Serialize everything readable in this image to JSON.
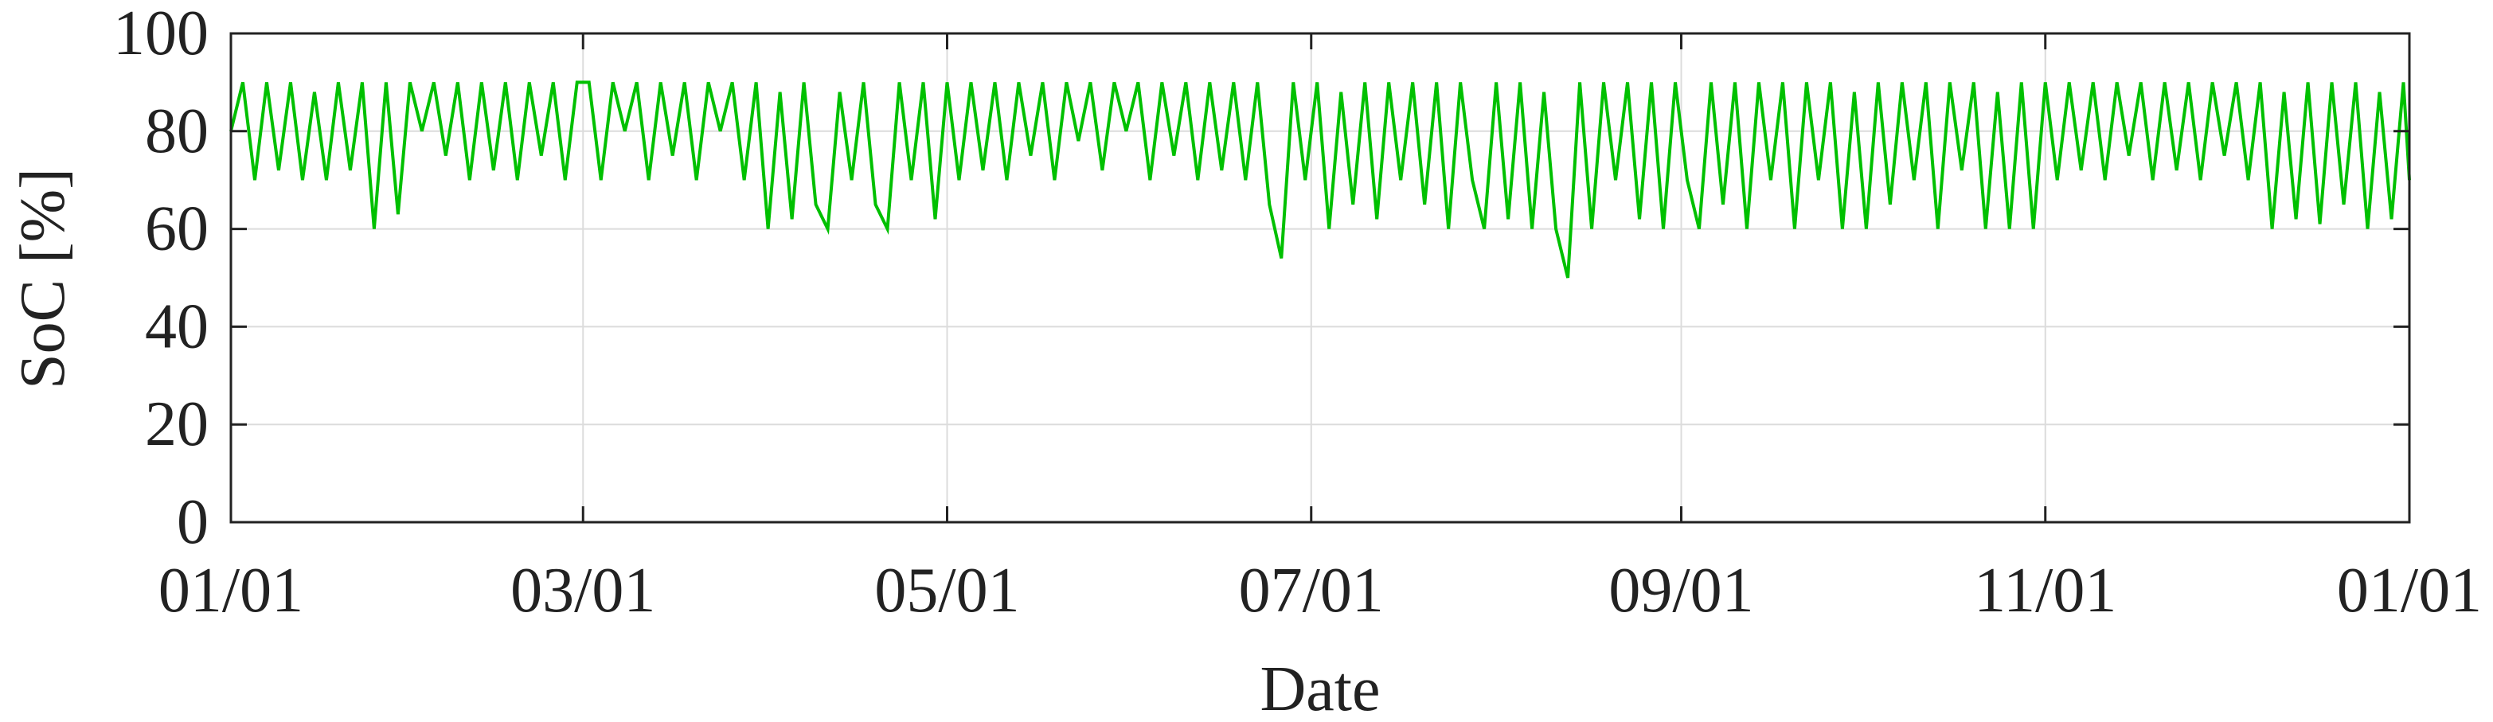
{
  "chart_data": {
    "type": "line",
    "xlabel": "Date",
    "ylabel": "SoC [%]",
    "xlim": [
      0,
      365
    ],
    "xticks": [
      {
        "value": 0,
        "label": "01/01"
      },
      {
        "value": 59,
        "label": "03/01"
      },
      {
        "value": 120,
        "label": "05/01"
      },
      {
        "value": 181,
        "label": "07/01"
      },
      {
        "value": 243,
        "label": "09/01"
      },
      {
        "value": 304,
        "label": "11/01"
      },
      {
        "value": 365,
        "label": "01/01"
      }
    ],
    "ylim": [
      0,
      100
    ],
    "yticks": [
      0,
      20,
      40,
      60,
      80,
      100
    ],
    "grid": true,
    "x": [
      0,
      2,
      4,
      6,
      8,
      10,
      12,
      14,
      16,
      18,
      20,
      22,
      24,
      26,
      28,
      30,
      32,
      34,
      36,
      38,
      40,
      42,
      44,
      46,
      48,
      50,
      52,
      54,
      56,
      58,
      60,
      62,
      64,
      66,
      68,
      70,
      72,
      74,
      76,
      78,
      80,
      82,
      84,
      86,
      88,
      90,
      92,
      94,
      96,
      98,
      100,
      102,
      104,
      106,
      108,
      110,
      112,
      114,
      116,
      118,
      120,
      122,
      124,
      126,
      128,
      130,
      132,
      134,
      136,
      138,
      140,
      142,
      144,
      146,
      148,
      150,
      152,
      154,
      156,
      158,
      160,
      162,
      164,
      166,
      168,
      170,
      172,
      174,
      176,
      178,
      180,
      182,
      184,
      186,
      188,
      190,
      192,
      194,
      196,
      198,
      200,
      202,
      204,
      206,
      208,
      210,
      212,
      214,
      216,
      218,
      220,
      222,
      224,
      226,
      228,
      230,
      232,
      234,
      236,
      238,
      240,
      242,
      244,
      246,
      248,
      250,
      252,
      254,
      256,
      258,
      260,
      262,
      264,
      266,
      268,
      270,
      272,
      274,
      276,
      278,
      280,
      282,
      284,
      286,
      288,
      290,
      292,
      294,
      296,
      298,
      300,
      302,
      304,
      306,
      308,
      310,
      312,
      314,
      316,
      318,
      320,
      322,
      324,
      326,
      328,
      330,
      332,
      334,
      336,
      338,
      340,
      342,
      344,
      346,
      348,
      350,
      352,
      354,
      356,
      358,
      360,
      362,
      364,
      365
    ],
    "series": [
      {
        "color": "#00c000",
        "values": [
          80,
          90,
          70,
          90,
          72,
          90,
          70,
          88,
          70,
          90,
          72,
          90,
          60,
          90,
          63,
          90,
          80,
          90,
          75,
          90,
          70,
          90,
          72,
          90,
          70,
          90,
          75,
          90,
          70,
          90,
          90,
          70,
          90,
          80,
          90,
          70,
          90,
          75,
          90,
          70,
          90,
          80,
          90,
          70,
          90,
          60,
          88,
          62,
          90,
          65,
          60,
          88,
          70,
          90,
          65,
          60,
          90,
          70,
          90,
          62,
          90,
          70,
          90,
          72,
          90,
          70,
          90,
          75,
          90,
          70,
          90,
          78,
          90,
          72,
          90,
          80,
          90,
          70,
          90,
          75,
          90,
          70,
          90,
          72,
          90,
          70,
          90,
          65,
          54,
          90,
          70,
          90,
          60,
          88,
          65,
          90,
          62,
          90,
          70,
          90,
          65,
          90,
          60,
          90,
          70,
          60,
          90,
          62,
          90,
          60,
          88,
          60,
          50,
          90,
          60,
          90,
          70,
          90,
          62,
          90,
          60,
          90,
          70,
          60,
          90,
          65,
          90,
          60,
          90,
          70,
          90,
          60,
          90,
          70,
          90,
          60,
          88,
          60,
          90,
          65,
          90,
          70,
          90,
          60,
          90,
          72,
          90,
          60,
          88,
          60,
          90,
          60,
          90,
          70,
          90,
          72,
          90,
          70,
          90,
          75,
          90,
          70,
          90,
          72,
          90,
          70,
          90,
          75,
          90,
          70,
          90,
          60,
          88,
          62,
          90,
          61,
          90,
          65,
          90,
          60,
          88,
          62,
          90,
          70
        ]
      }
    ]
  }
}
